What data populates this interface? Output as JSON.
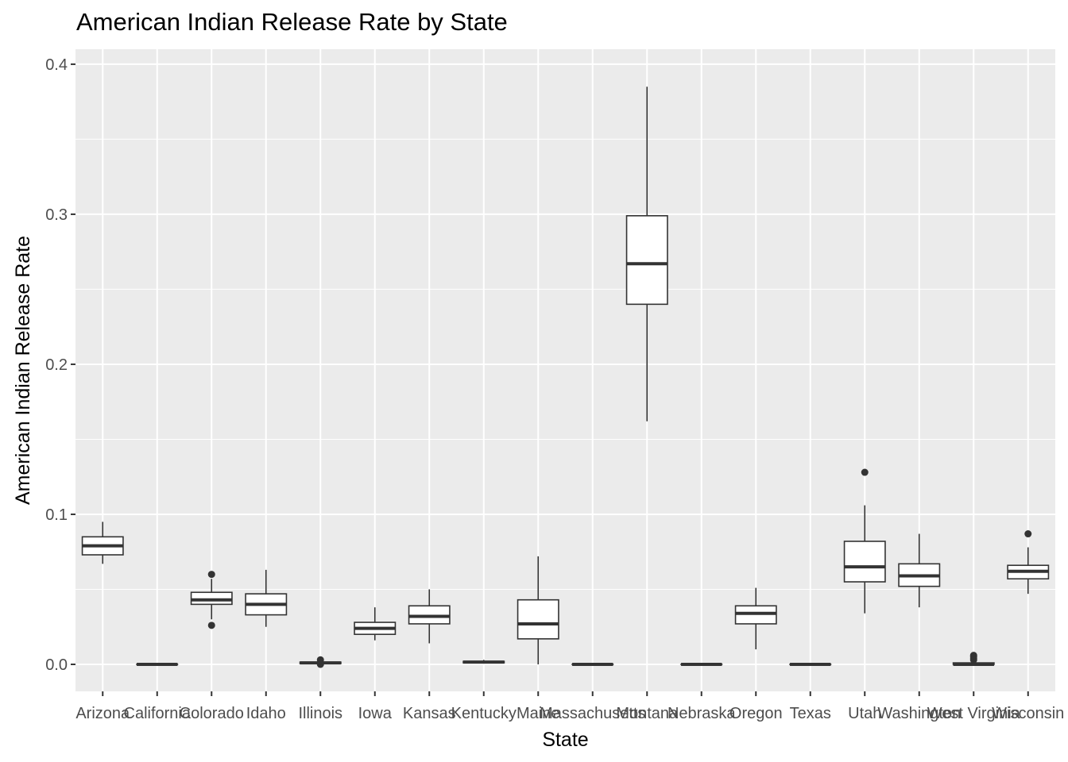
{
  "chart_data": {
    "type": "boxplot",
    "title": "American Indian Release Rate by State",
    "xlabel": "State",
    "ylabel": "American Indian Release Rate",
    "ylim": [
      -0.018,
      0.41
    ],
    "yticks": [
      0.0,
      0.1,
      0.2,
      0.3,
      0.4
    ],
    "ytick_labels": [
      "0.0",
      "0.1",
      "0.2",
      "0.3",
      "0.4"
    ],
    "grid": true,
    "categories": [
      "Arizona",
      "California",
      "Colorado",
      "Idaho",
      "Illinois",
      "Iowa",
      "Kansas",
      "Kentucky",
      "Maine",
      "Massachusetts",
      "Montana",
      "Nebraska",
      "Oregon",
      "Texas",
      "Utah",
      "Washington",
      "West Virginia",
      "Wisconsin"
    ],
    "boxes": [
      {
        "state": "Arizona",
        "min": 0.067,
        "q1": 0.073,
        "median": 0.079,
        "q3": 0.085,
        "max": 0.095,
        "outliers": []
      },
      {
        "state": "California",
        "min": 0.0,
        "q1": 0.0,
        "median": 0.0,
        "q3": 0.0,
        "max": 0.0,
        "outliers": []
      },
      {
        "state": "Colorado",
        "min": 0.03,
        "q1": 0.04,
        "median": 0.043,
        "q3": 0.048,
        "max": 0.057,
        "outliers": [
          0.06,
          0.026
        ]
      },
      {
        "state": "Idaho",
        "min": 0.025,
        "q1": 0.033,
        "median": 0.04,
        "q3": 0.047,
        "max": 0.063,
        "outliers": []
      },
      {
        "state": "Illinois",
        "min": 0.0,
        "q1": 0.0005,
        "median": 0.001,
        "q3": 0.0015,
        "max": 0.002,
        "outliers": [
          0.003,
          0.0
        ]
      },
      {
        "state": "Iowa",
        "min": 0.016,
        "q1": 0.02,
        "median": 0.024,
        "q3": 0.028,
        "max": 0.038,
        "outliers": []
      },
      {
        "state": "Kansas",
        "min": 0.014,
        "q1": 0.027,
        "median": 0.032,
        "q3": 0.039,
        "max": 0.05,
        "outliers": []
      },
      {
        "state": "Kentucky",
        "min": 0.0005,
        "q1": 0.001,
        "median": 0.0015,
        "q3": 0.002,
        "max": 0.003,
        "outliers": []
      },
      {
        "state": "Maine",
        "min": 0.0,
        "q1": 0.017,
        "median": 0.027,
        "q3": 0.043,
        "max": 0.072,
        "outliers": []
      },
      {
        "state": "Massachusetts",
        "min": 0.0,
        "q1": 0.0,
        "median": 0.0,
        "q3": 0.0,
        "max": 0.0,
        "outliers": []
      },
      {
        "state": "Montana",
        "min": 0.162,
        "q1": 0.24,
        "median": 0.267,
        "q3": 0.299,
        "max": 0.385,
        "outliers": []
      },
      {
        "state": "Nebraska",
        "min": 0.0,
        "q1": 0.0,
        "median": 0.0,
        "q3": 0.0,
        "max": 0.0,
        "outliers": []
      },
      {
        "state": "Oregon",
        "min": 0.01,
        "q1": 0.027,
        "median": 0.034,
        "q3": 0.039,
        "max": 0.051,
        "outliers": []
      },
      {
        "state": "Texas",
        "min": 0.0,
        "q1": 0.0,
        "median": 0.0,
        "q3": 0.0,
        "max": 0.0,
        "outliers": []
      },
      {
        "state": "Utah",
        "min": 0.034,
        "q1": 0.055,
        "median": 0.065,
        "q3": 0.082,
        "max": 0.106,
        "outliers": [
          0.128
        ]
      },
      {
        "state": "Washington",
        "min": 0.038,
        "q1": 0.052,
        "median": 0.059,
        "q3": 0.067,
        "max": 0.087,
        "outliers": []
      },
      {
        "state": "West Virginia",
        "min": 0.0,
        "q1": 0.0,
        "median": 0.0,
        "q3": 0.001,
        "max": 0.002,
        "outliers": [
          0.003,
          0.004,
          0.005,
          0.006
        ]
      },
      {
        "state": "Wisconsin",
        "min": 0.047,
        "q1": 0.057,
        "median": 0.062,
        "q3": 0.066,
        "max": 0.078,
        "outliers": [
          0.087
        ]
      }
    ]
  }
}
